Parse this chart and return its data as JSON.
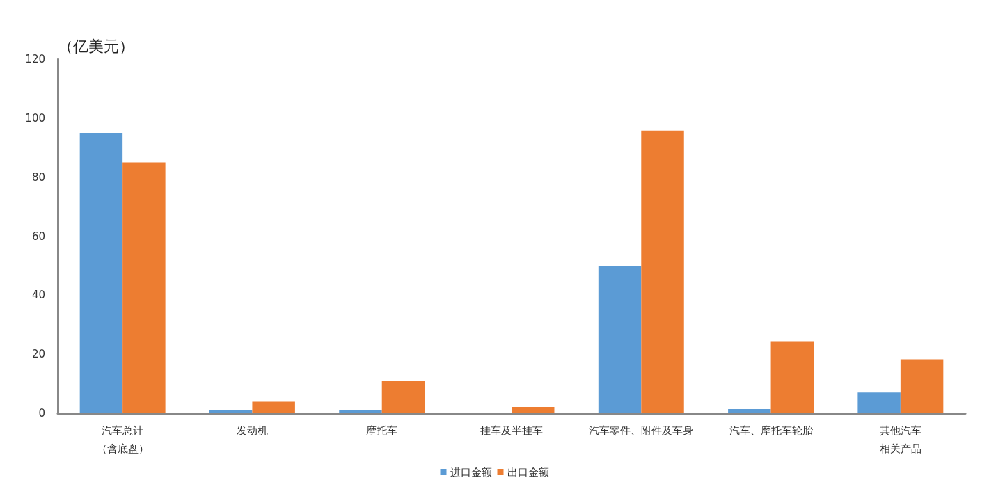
{
  "chart_data": {
    "type": "bar",
    "ylabel": "（亿美元）",
    "categories": [
      "汽车总计（含底盘）",
      "发动机",
      "摩托车",
      "挂车及半挂车",
      "汽车零件、附件及车身",
      "汽车、摩托车轮胎",
      "其他汽车相关产品"
    ],
    "series": [
      {
        "name": "进口金额",
        "color": "#5b9bd5",
        "values": [
          95,
          1,
          1.2,
          0,
          50,
          1.4,
          7
        ]
      },
      {
        "name": "出口金额",
        "color": "#ed7d31",
        "values": [
          85,
          3.9,
          11.1,
          2.1,
          95.8,
          24.4,
          18.3
        ]
      }
    ],
    "ylim": [
      0,
      120
    ],
    "yticks": [
      0,
      20,
      40,
      60,
      80,
      100,
      120
    ],
    "grid": false,
    "legend": "bottom"
  }
}
